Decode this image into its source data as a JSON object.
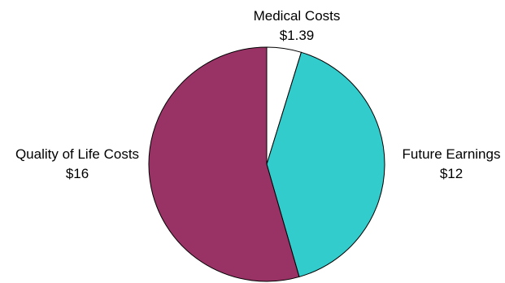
{
  "chart_data": {
    "type": "pie",
    "title": "",
    "slices": [
      {
        "label": "Medical Costs",
        "value_label": "$1.39",
        "value": 1.39,
        "color": "#ffffff"
      },
      {
        "label": "Future Earnings",
        "value_label": "$12",
        "value": 12,
        "color": "#33cccc"
      },
      {
        "label": "Quality of Life Costs",
        "value_label": "$16",
        "value": 16,
        "color": "#993366"
      }
    ],
    "start_angle": "12 o'clock",
    "direction": "clockwise",
    "legend": "none"
  }
}
